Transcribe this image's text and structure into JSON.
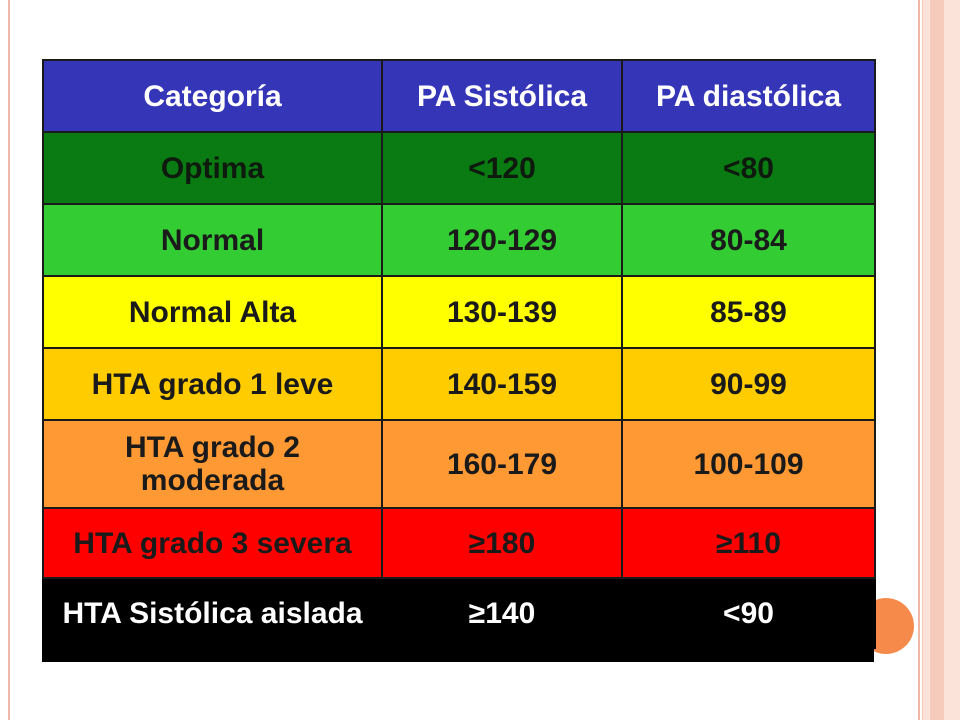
{
  "table": {
    "headers": [
      "Categoría",
      "PA Sistólica",
      "PA diastólica"
    ],
    "rows": [
      {
        "category": "Optima",
        "systolic": "<120",
        "diastolic": "<80"
      },
      {
        "category": "Normal",
        "systolic": "120-129",
        "diastolic": "80-84"
      },
      {
        "category": "Normal Alta",
        "systolic": "130-139",
        "diastolic": "85-89"
      },
      {
        "category": "HTA grado 1 leve",
        "systolic": "140-159",
        "diastolic": "90-99"
      },
      {
        "category": "HTA grado 2 moderada",
        "systolic": "160-179",
        "diastolic": "100-109"
      },
      {
        "category": "HTA grado 3 severa",
        "systolic": "≥180",
        "diastolic": "≥110"
      },
      {
        "category": "HTA Sistólica aislada",
        "systolic": "≥140",
        "diastolic": "<90"
      }
    ]
  },
  "colors": {
    "header": "#3535b8",
    "optima": "#0a7a12",
    "normal": "#33cc33",
    "normal_alta": "#ffff00",
    "grado1": "#ffcc00",
    "grado2": "#ff9933",
    "grado3": "#ff0000",
    "aislada": "#000000",
    "accent": "#f58a4a"
  }
}
